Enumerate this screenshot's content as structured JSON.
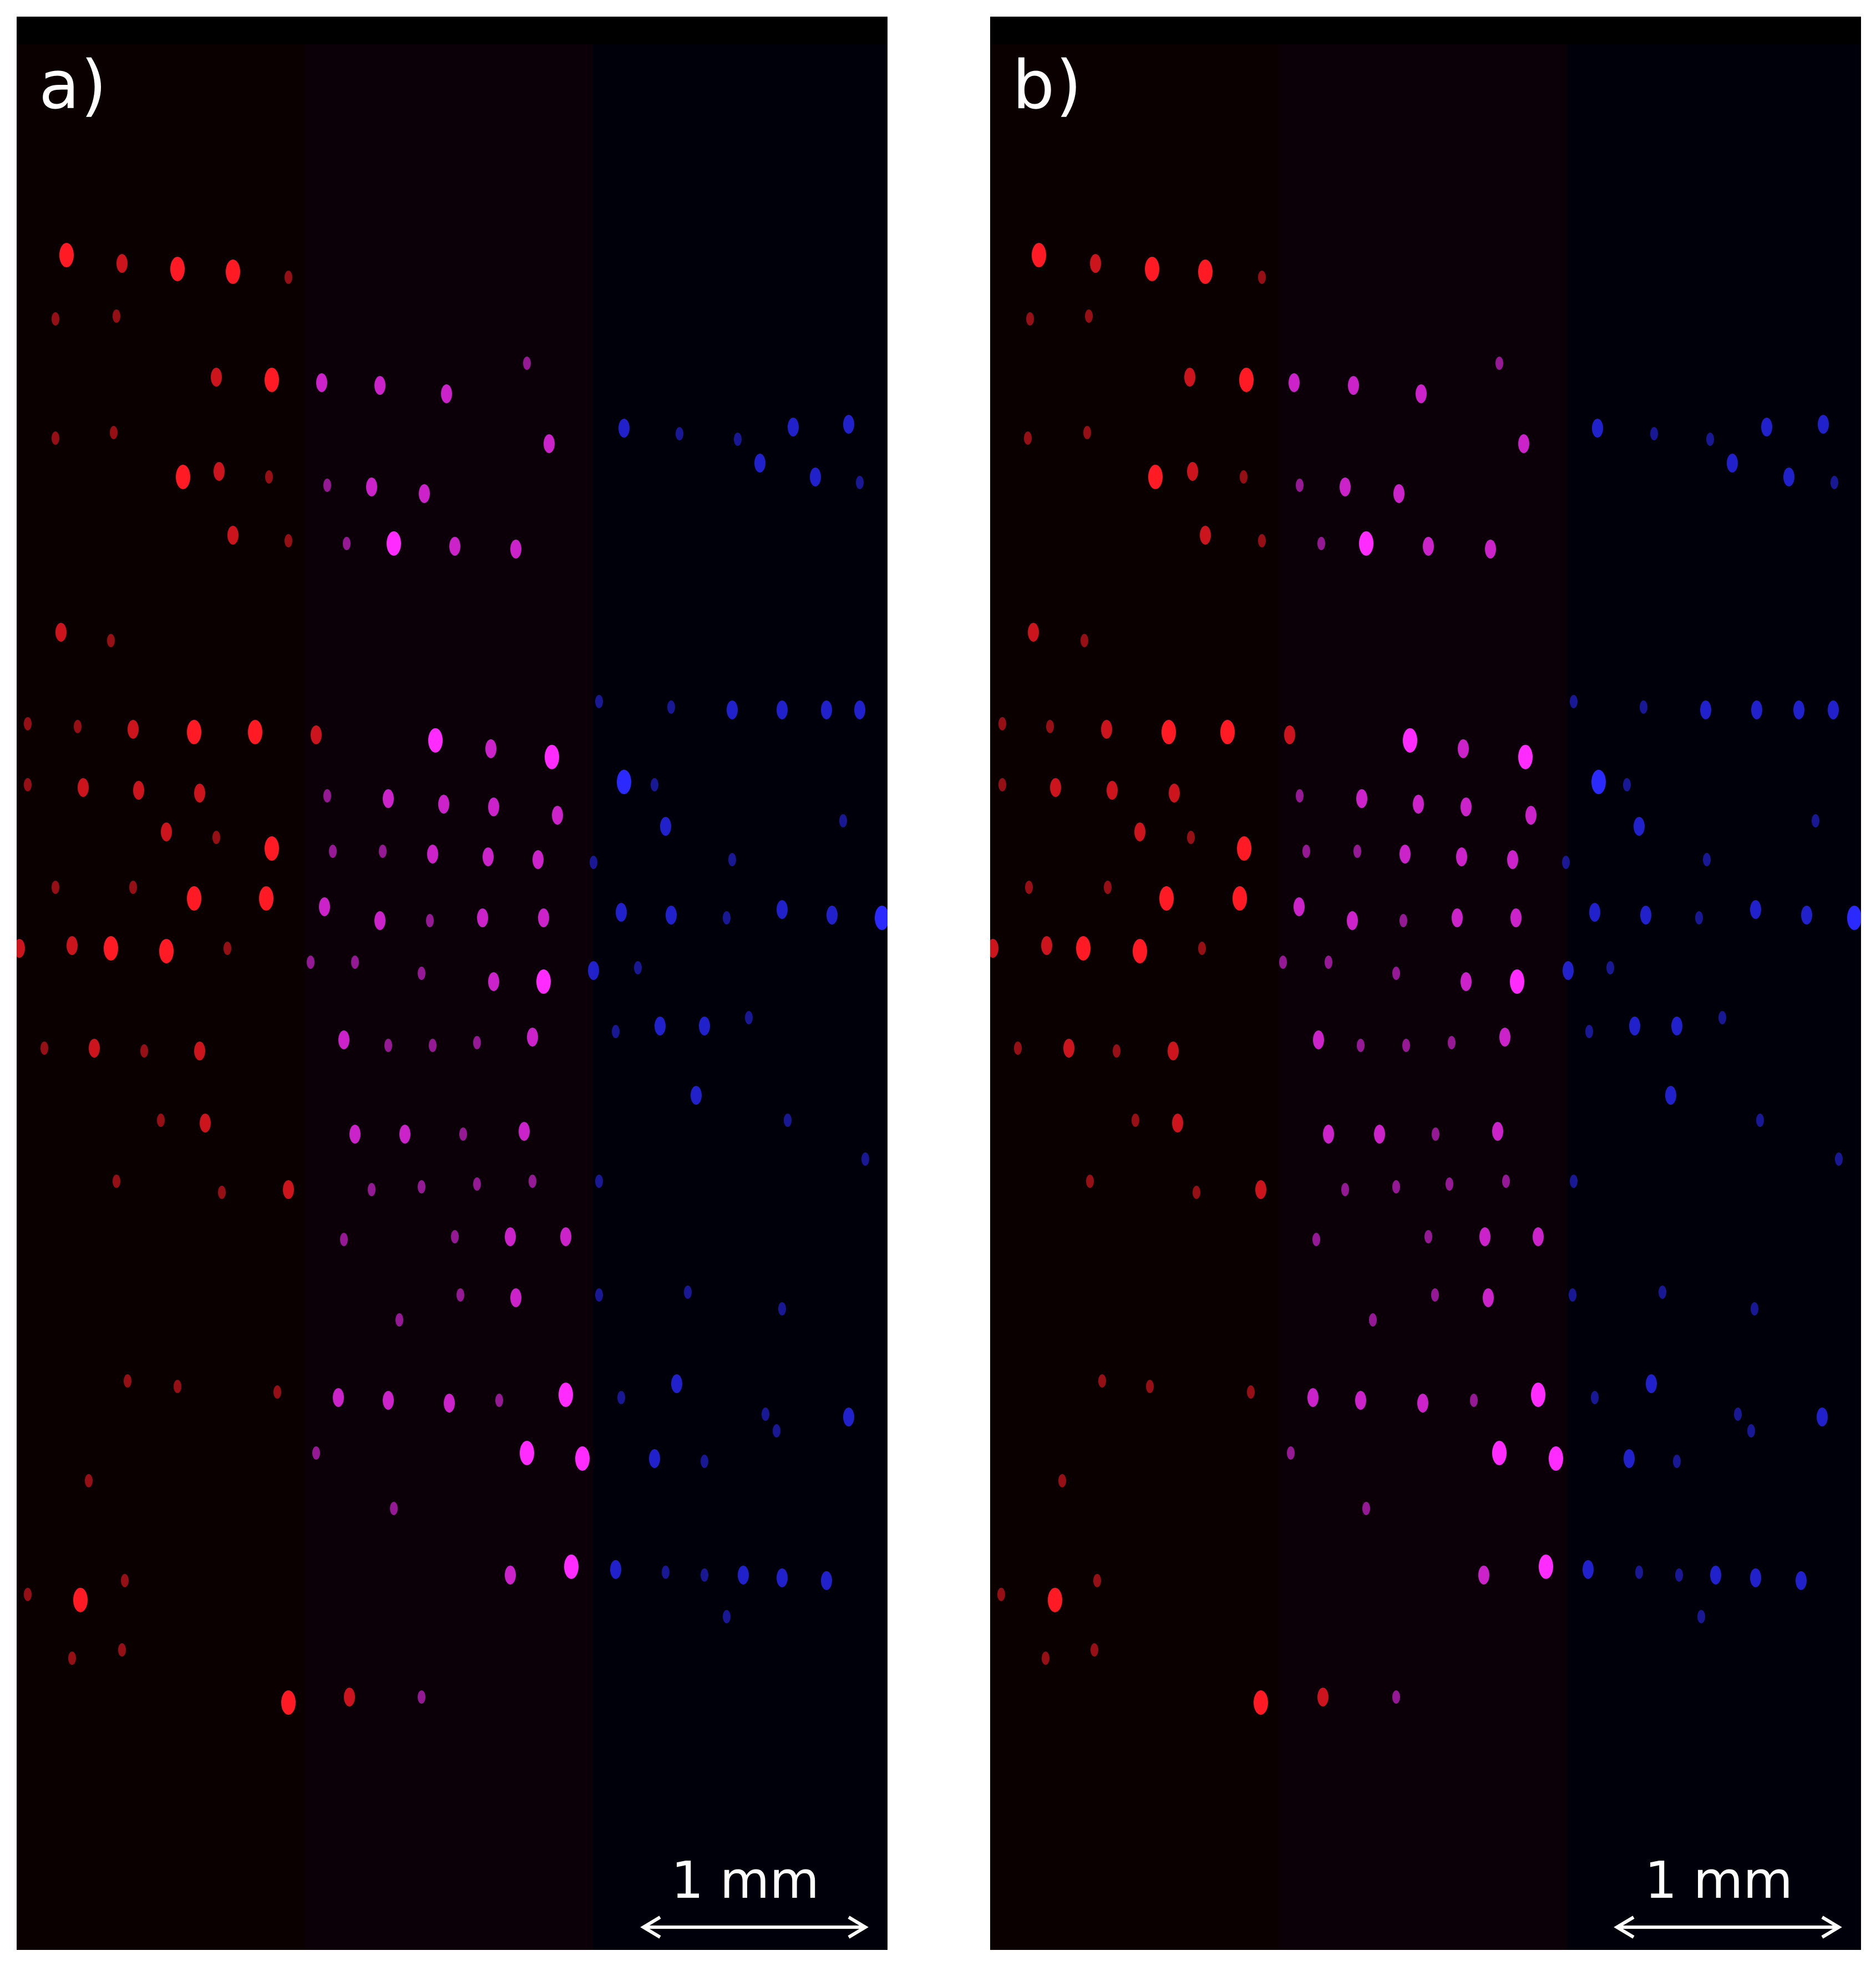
{
  "figure": {
    "panels": [
      {
        "id": "a",
        "label": "a)",
        "scale_bar": "1 mm"
      },
      {
        "id": "b",
        "label": "b)",
        "scale_bar": "1 mm"
      }
    ],
    "colors": {
      "red_spots": "#ff1a24",
      "magenta_spots": "#ff2bff",
      "blue_spots": "#2a2aff",
      "background": "#000000",
      "annotation": "#ffffff"
    }
  }
}
